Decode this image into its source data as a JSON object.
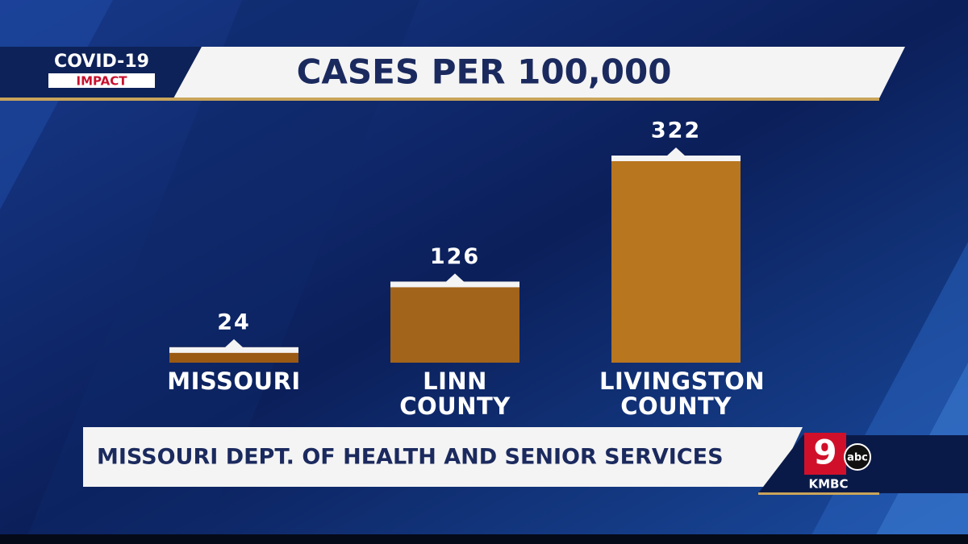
{
  "header": {
    "badge_top": "COVID-19",
    "badge_bottom": "IMPACT"
  },
  "chart_data": {
    "type": "bar",
    "title": "CASES PER 100,000",
    "categories": [
      "MISSOURI",
      "LINN COUNTY",
      "LIVINGSTON COUNTY"
    ],
    "values": [
      24,
      126,
      322
    ],
    "colors": [
      "#9a5a14",
      "#a2631a",
      "#b8761f"
    ]
  },
  "source": "MISSOURI DEPT. OF HEALTH AND SENIOR SERVICES",
  "logo": {
    "channel": "9",
    "network": "abc",
    "station": "KMBC"
  }
}
